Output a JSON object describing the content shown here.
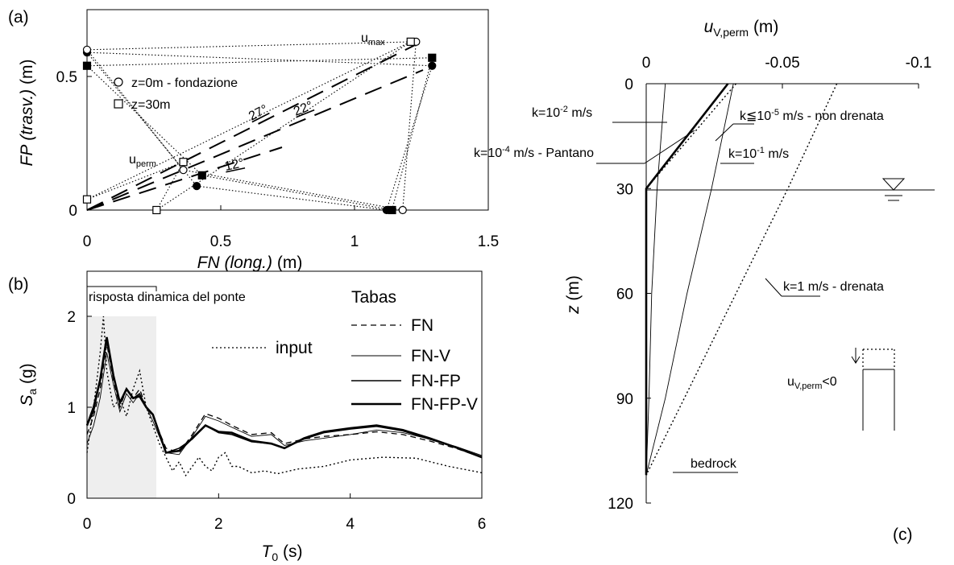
{
  "chart_data": [
    {
      "id": "a",
      "type": "scatter",
      "panel_label": "(a)",
      "xlabel_italic": "FN (long.)",
      "xlabel_unit": "(m)",
      "ylabel_italic": "FP (trasv.)",
      "ylabel_unit": "(m)",
      "xlim": [
        0,
        1.5
      ],
      "ylim": [
        0,
        0.75
      ],
      "xticks": [
        "0",
        "0.5",
        "1",
        "1.5"
      ],
      "yticks": [
        "0",
        "0.5"
      ],
      "legend": [
        {
          "symbol": "circle",
          "text": "z=0m - fondazione"
        },
        {
          "symbol": "square",
          "text": "z=30m"
        }
      ],
      "annotations": {
        "umax_base": "u",
        "umax_sub": "max",
        "uperm_base": "u",
        "uperm_sub": "perm",
        "angles": [
          "27°",
          "22°",
          "12°"
        ]
      },
      "point_groups": [
        {
          "name": "u_max",
          "z0_filled": [
            1.29,
            0.54
          ],
          "z0_open": [
            1.23,
            0.63
          ],
          "z30_filled": [
            1.29,
            0.57
          ],
          "z30_open": [
            1.21,
            0.63
          ]
        },
        {
          "name": "u_perm",
          "z0_filled": [
            0.41,
            0.09
          ],
          "z0_open": [
            0.36,
            0.15
          ],
          "z30_filled": [
            0.43,
            0.13
          ],
          "z30_open": [
            0.36,
            0.18
          ]
        },
        {
          "name": "FP_axis",
          "z0_filled": [
            0,
            0.59
          ],
          "z0_open": [
            0,
            0.6
          ],
          "z30_filled": [
            0,
            0.54
          ],
          "z30_open": [
            0,
            0.04
          ]
        },
        {
          "name": "FN_axis",
          "z0_filled": [
            1.12,
            0
          ],
          "z0_open": [
            1.18,
            0
          ],
          "z30_filled": [
            1.14,
            0
          ],
          "z30_open": [
            0.26,
            0
          ]
        }
      ]
    },
    {
      "id": "b",
      "type": "line",
      "panel_label": "(b)",
      "xlabel_base": "T",
      "xlabel_sub": "0",
      "xlabel_unit": "(s)",
      "ylabel_base": "S",
      "ylabel_sub": "a",
      "ylabel_unit": "(g)",
      "xlim": [
        0,
        6
      ],
      "ylim": [
        0,
        2
      ],
      "xticks": [
        "0",
        "2",
        "4",
        "6"
      ],
      "yticks": [
        "0",
        "1",
        "2"
      ],
      "bracket_label": "risposta dinamica del ponte",
      "shaded_region": [
        0,
        1.05
      ],
      "legend_title": "Tabas",
      "series": [
        {
          "name": "FN",
          "style": "dashed",
          "x": [
            0,
            0.1,
            0.2,
            0.3,
            0.4,
            0.5,
            0.6,
            0.7,
            0.8,
            0.9,
            1.0,
            1.2,
            1.4,
            1.6,
            1.8,
            2.0,
            2.2,
            2.5,
            2.8,
            3.0,
            3.3,
            3.6,
            4.0,
            4.4,
            4.8,
            5.2,
            5.6,
            6.0
          ],
          "values": [
            0.7,
            0.9,
            1.2,
            1.7,
            1.3,
            1.0,
            1.2,
            1.1,
            1.2,
            1.0,
            0.9,
            0.55,
            0.5,
            0.7,
            0.93,
            0.88,
            0.8,
            0.7,
            0.72,
            0.6,
            0.65,
            0.68,
            0.7,
            0.73,
            0.7,
            0.63,
            0.55,
            0.45
          ]
        },
        {
          "name": "FN-V",
          "style": "thin",
          "x": [
            0,
            0.1,
            0.2,
            0.3,
            0.4,
            0.5,
            0.6,
            0.7,
            0.8,
            0.9,
            1.0,
            1.2,
            1.4,
            1.6,
            1.8,
            2.0,
            2.2,
            2.5,
            2.8,
            3.0,
            3.3,
            3.6,
            4.0,
            4.4,
            4.8,
            5.2,
            5.6,
            6.0
          ],
          "values": [
            0.6,
            0.8,
            1.1,
            1.6,
            1.25,
            0.95,
            1.15,
            1.05,
            1.15,
            1.0,
            0.85,
            0.5,
            0.48,
            0.68,
            0.9,
            0.85,
            0.78,
            0.68,
            0.7,
            0.58,
            0.63,
            0.66,
            0.7,
            0.75,
            0.72,
            0.65,
            0.57,
            0.47
          ]
        },
        {
          "name": "FN-FP",
          "style": "medium",
          "x": [
            0,
            0.1,
            0.2,
            0.3,
            0.4,
            0.5,
            0.6,
            0.7,
            0.8,
            0.9,
            1.0,
            1.2,
            1.4,
            1.6,
            1.8,
            2.0,
            2.2,
            2.5,
            2.8,
            3.0,
            3.3,
            3.6,
            4.0,
            4.4,
            4.8,
            5.2,
            5.6,
            6.0
          ],
          "values": [
            0.8,
            0.95,
            1.3,
            1.75,
            1.35,
            1.05,
            1.2,
            1.1,
            1.15,
            1.0,
            0.92,
            0.5,
            0.55,
            0.65,
            0.8,
            0.72,
            0.7,
            0.62,
            0.6,
            0.55,
            0.65,
            0.72,
            0.76,
            0.79,
            0.74,
            0.65,
            0.56,
            0.45
          ]
        },
        {
          "name": "FN-FP-V",
          "style": "thick",
          "x": [
            0,
            0.1,
            0.2,
            0.3,
            0.4,
            0.5,
            0.6,
            0.7,
            0.8,
            0.9,
            1.0,
            1.2,
            1.4,
            1.6,
            1.8,
            2.0,
            2.2,
            2.5,
            2.8,
            3.0,
            3.3,
            3.6,
            4.0,
            4.4,
            4.8,
            5.2,
            5.6,
            6.0
          ],
          "values": [
            0.8,
            1.0,
            1.3,
            1.77,
            1.35,
            1.05,
            1.2,
            1.1,
            1.12,
            1.0,
            0.92,
            0.5,
            0.52,
            0.66,
            0.8,
            0.73,
            0.72,
            0.63,
            0.6,
            0.55,
            0.66,
            0.73,
            0.77,
            0.8,
            0.75,
            0.66,
            0.56,
            0.45
          ]
        },
        {
          "name": "input",
          "style": "dotted",
          "x": [
            0,
            0.1,
            0.2,
            0.25,
            0.3,
            0.4,
            0.5,
            0.6,
            0.7,
            0.8,
            0.9,
            1.0,
            1.1,
            1.2,
            1.3,
            1.4,
            1.5,
            1.6,
            1.7,
            1.8,
            1.9,
            2.0,
            2.1,
            2.2,
            2.3,
            2.5,
            2.7,
            2.9,
            3.2,
            3.6,
            4.0,
            4.5,
            5.0,
            5.5,
            6.0
          ],
          "values": [
            0.5,
            1.0,
            1.6,
            2.0,
            1.4,
            1.0,
            1.1,
            0.9,
            1.2,
            1.4,
            1.0,
            0.8,
            0.6,
            0.45,
            0.3,
            0.4,
            0.25,
            0.35,
            0.45,
            0.35,
            0.3,
            0.45,
            0.5,
            0.35,
            0.35,
            0.28,
            0.3,
            0.27,
            0.32,
            0.35,
            0.42,
            0.45,
            0.44,
            0.35,
            0.28
          ]
        }
      ]
    },
    {
      "id": "c",
      "type": "line",
      "panel_label": "(c)",
      "top_label_base": "u",
      "top_label_sub": "V,perm",
      "top_label_unit": "(m)",
      "ylabel_italic": "z",
      "ylabel_unit": "(m)",
      "xlim": [
        0,
        -0.1
      ],
      "ylim": [
        0,
        120
      ],
      "xticks": [
        "0",
        "-0.05",
        "-0.1"
      ],
      "yticks": [
        "0",
        "30",
        "60",
        "90",
        "120"
      ],
      "water_table_depth": 30,
      "bedrock_label": "bedrock",
      "sign_note_base": "u",
      "sign_note_sub": "V,perm",
      "sign_note_rest": "<0",
      "labels": [
        {
          "text_base": "k=10",
          "text_exp": "-2",
          "text_rest": " m/s"
        },
        {
          "text_base": "k≦10",
          "text_exp": "-5",
          "text_rest": " m/s - non drenata"
        },
        {
          "text_base": "k=10",
          "text_exp": "-4",
          "text_rest": " m/s - Pantano"
        },
        {
          "text_base": "k=10",
          "text_exp": "-1",
          "text_rest": " m/s"
        },
        {
          "text_base": "k=1 m/s - drenata",
          "text_exp": "",
          "text_rest": ""
        }
      ],
      "series": [
        {
          "name": "k=10^-2",
          "style": "thin",
          "z": [
            0,
            30,
            60,
            90,
            112
          ],
          "u": [
            -0.007,
            -0.004,
            -0.002,
            -0.001,
            0
          ]
        },
        {
          "name": "k<=10^-5",
          "style": "dotted",
          "z": [
            0,
            30,
            112
          ],
          "u": [
            -0.033,
            0,
            0
          ]
        },
        {
          "name": "k=10^-4 Pantano",
          "style": "thick",
          "z": [
            0,
            10,
            20,
            30,
            60,
            112
          ],
          "u": [
            -0.03,
            -0.02,
            -0.01,
            0,
            0,
            0
          ]
        },
        {
          "name": "k=10^-1",
          "style": "thin",
          "z": [
            0,
            30,
            60,
            90,
            112
          ],
          "u": [
            -0.032,
            -0.024,
            -0.015,
            -0.007,
            0
          ]
        },
        {
          "name": "k=1",
          "style": "dotted",
          "z": [
            0,
            30,
            60,
            90,
            112
          ],
          "u": [
            -0.07,
            -0.052,
            -0.033,
            -0.014,
            0
          ]
        }
      ]
    }
  ]
}
